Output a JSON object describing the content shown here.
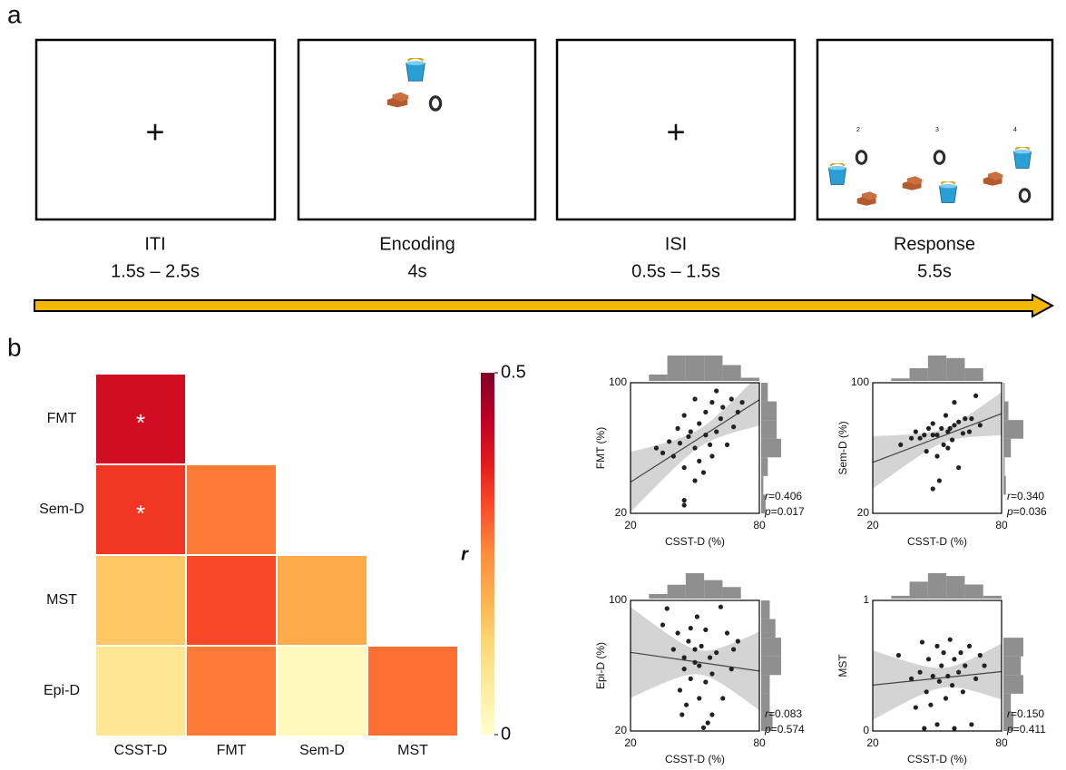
{
  "panel_a": {
    "label": "a",
    "screens": [
      {
        "name": "ITI",
        "duration": "1.5s – 2.5s",
        "symbol": "+"
      },
      {
        "name": "Encoding",
        "duration": "4s"
      },
      {
        "name": "ISI",
        "duration": "0.5s – 1.5s",
        "symbol": "+"
      },
      {
        "name": "Response",
        "duration": "5.5s",
        "options": [
          "2",
          "3",
          "4"
        ]
      }
    ]
  },
  "panel_b": {
    "label": "b",
    "heatmap": {
      "rows": [
        "FMT",
        "Sem-D",
        "MST",
        "Epi-D"
      ],
      "columns": [
        "CSST-D",
        "FMT",
        "Sem-D",
        "MST"
      ],
      "values": [
        [
          0.406,
          null,
          null,
          null
        ],
        [
          0.34,
          0.27,
          null,
          null
        ],
        [
          0.15,
          0.32,
          0.2,
          null
        ],
        [
          0.083,
          0.27,
          0.02,
          0.28
        ]
      ],
      "stars": [
        [
          "*",
          null,
          null,
          null
        ],
        [
          "*",
          null,
          null,
          null
        ],
        [
          null,
          null,
          null,
          null
        ],
        [
          null,
          null,
          null,
          null
        ]
      ],
      "colorbar": {
        "label": "r",
        "lim": [
          0,
          0.5
        ],
        "ticks": [
          0,
          0.5
        ]
      }
    },
    "scatters": [
      {
        "x_label": "CSST-D (%)",
        "y_label": "FMT (%)",
        "xlim": [
          20,
          80
        ],
        "xticks": [
          20,
          80
        ],
        "ylim": [
          20,
          100
        ],
        "yticks": [
          20,
          100
        ],
        "stats": [
          {
            "symbol": "r",
            "text": "=0.406"
          },
          {
            "symbol": "p",
            "text": "=0.017"
          }
        ],
        "points": [
          [
            32,
            60
          ],
          [
            35,
            57
          ],
          [
            38,
            64
          ],
          [
            40,
            55
          ],
          [
            42,
            72
          ],
          [
            43,
            63
          ],
          [
            45,
            48
          ],
          [
            45,
            80
          ],
          [
            47,
            67
          ],
          [
            48,
            70
          ],
          [
            50,
            90
          ],
          [
            50,
            60
          ],
          [
            52,
            52
          ],
          [
            52,
            75
          ],
          [
            54,
            45
          ],
          [
            55,
            68
          ],
          [
            55,
            82
          ],
          [
            57,
            62
          ],
          [
            58,
            55
          ],
          [
            58,
            88
          ],
          [
            60,
            70
          ],
          [
            60,
            95
          ],
          [
            62,
            78
          ],
          [
            63,
            85
          ],
          [
            65,
            62
          ],
          [
            67,
            90
          ],
          [
            68,
            73
          ],
          [
            70,
            82
          ],
          [
            72,
            88
          ],
          [
            45,
            28
          ],
          [
            45,
            25
          ],
          [
            50,
            40
          ]
        ]
      },
      {
        "x_label": "CSST-D (%)",
        "y_label": "Sem-D (%)",
        "xlim": [
          20,
          80
        ],
        "xticks": [
          20,
          80
        ],
        "ylim": [
          20,
          100
        ],
        "yticks": [
          20,
          100
        ],
        "stats": [
          {
            "symbol": "r",
            "text": "=0.340"
          },
          {
            "symbol": "p",
            "text": "=0.036"
          }
        ],
        "points": [
          [
            33,
            62
          ],
          [
            38,
            66
          ],
          [
            40,
            70
          ],
          [
            42,
            66
          ],
          [
            44,
            68
          ],
          [
            45,
            58
          ],
          [
            46,
            72
          ],
          [
            48,
            68
          ],
          [
            48,
            75
          ],
          [
            50,
            68
          ],
          [
            50,
            55
          ],
          [
            51,
            40
          ],
          [
            52,
            72
          ],
          [
            53,
            62
          ],
          [
            54,
            80
          ],
          [
            55,
            70
          ],
          [
            55,
            60
          ],
          [
            57,
            65
          ],
          [
            58,
            88
          ],
          [
            58,
            74
          ],
          [
            60,
            76
          ],
          [
            60,
            48
          ],
          [
            62,
            69
          ],
          [
            63,
            78
          ],
          [
            65,
            70
          ],
          [
            66,
            78
          ],
          [
            68,
            92
          ],
          [
            70,
            74
          ],
          [
            48,
            35
          ],
          [
            56,
            72
          ]
        ]
      },
      {
        "x_label": "CSST-D (%)",
        "y_label": "Epi-D (%)",
        "xlim": [
          20,
          80
        ],
        "xticks": [
          20,
          80
        ],
        "ylim": [
          20,
          100
        ],
        "yticks": [
          20,
          100
        ],
        "stats": [
          {
            "symbol": "r",
            "text": "=0.083"
          },
          {
            "symbol": "p",
            "text": "=0.574"
          }
        ],
        "points": [
          [
            35,
            85
          ],
          [
            37,
            95
          ],
          [
            40,
            70
          ],
          [
            42,
            80
          ],
          [
            43,
            45
          ],
          [
            45,
            58
          ],
          [
            45,
            65
          ],
          [
            46,
            36
          ],
          [
            47,
            75
          ],
          [
            48,
            52
          ],
          [
            48,
            83
          ],
          [
            50,
            62
          ],
          [
            50,
            70
          ],
          [
            51,
            90
          ],
          [
            52,
            40
          ],
          [
            52,
            60
          ],
          [
            53,
            72
          ],
          [
            54,
            22
          ],
          [
            55,
            82
          ],
          [
            55,
            50
          ],
          [
            57,
            65
          ],
          [
            58,
            30
          ],
          [
            58,
            55
          ],
          [
            60,
            68
          ],
          [
            62,
            96
          ],
          [
            63,
            40
          ],
          [
            65,
            80
          ],
          [
            67,
            58
          ],
          [
            68,
            70
          ],
          [
            70,
            75
          ],
          [
            56,
            25
          ],
          [
            44,
            30
          ]
        ]
      },
      {
        "x_label": "CSST-D (%)",
        "y_label": "MST",
        "xlim": [
          20,
          80
        ],
        "xticks": [
          20,
          80
        ],
        "ylim": [
          0,
          1
        ],
        "yticks": [
          0,
          1
        ],
        "stats": [
          {
            "symbol": "r",
            "text": "=0.150"
          },
          {
            "symbol": "p",
            "text": "=0.411"
          }
        ],
        "points": [
          [
            32,
            0.58
          ],
          [
            38,
            0.4
          ],
          [
            40,
            0.18
          ],
          [
            42,
            0.45
          ],
          [
            43,
            0.68
          ],
          [
            45,
            0.3
          ],
          [
            46,
            0.55
          ],
          [
            47,
            0.2
          ],
          [
            48,
            0.42
          ],
          [
            50,
            0.65
          ],
          [
            50,
            0.05
          ],
          [
            51,
            0.38
          ],
          [
            52,
            0.5
          ],
          [
            53,
            0.6
          ],
          [
            54,
            0.25
          ],
          [
            55,
            0.42
          ],
          [
            56,
            0.7
          ],
          [
            57,
            0.35
          ],
          [
            58,
            0.55
          ],
          [
            58,
            0.02
          ],
          [
            60,
            0.45
          ],
          [
            61,
            0.6
          ],
          [
            62,
            0.3
          ],
          [
            63,
            0.5
          ],
          [
            65,
            0.65
          ],
          [
            66,
            0.05
          ],
          [
            68,
            0.4
          ],
          [
            70,
            0.58
          ],
          [
            72,
            0.5
          ],
          [
            44,
            0.02
          ]
        ]
      }
    ]
  }
}
